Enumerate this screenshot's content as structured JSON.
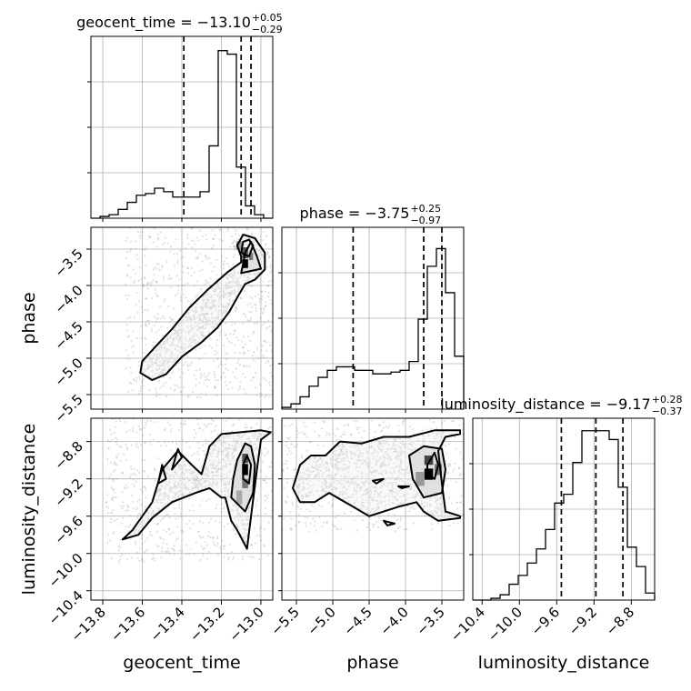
{
  "chart_data": {
    "type": "corner",
    "parameters": [
      {
        "key": "geocent_time",
        "label": "geocent_time",
        "title": "geocent_time = −13.10",
        "median_text": "−13.10",
        "err_plus": "+0.05",
        "err_minus": "−0.29",
        "range": [
          -13.86,
          -12.94
        ],
        "ticks": [
          -13.8,
          -13.6,
          -13.4,
          -13.2,
          -13.0
        ],
        "tick_labels": [
          "−13.8",
          "−13.6",
          "−13.4",
          "−13.2",
          "−13.0"
        ],
        "quantiles": [
          -13.39,
          -13.1,
          -13.05
        ],
        "hist_edges_start": -13.86,
        "hist_bin_width": 0.046,
        "hist_counts": [
          0,
          0.01,
          0.02,
          0.05,
          0.09,
          0.13,
          0.14,
          0.17,
          0.15,
          0.12,
          0.12,
          0.12,
          0.15,
          0.41,
          0.95,
          0.93,
          0.29,
          0.07,
          0.02,
          0
        ]
      },
      {
        "key": "phase",
        "label": "phase",
        "title": "phase = −3.75",
        "median_text": "−3.75",
        "err_plus": "+0.25",
        "err_minus": "−0.97",
        "range": [
          -5.7,
          -3.2
        ],
        "ticks": [
          -5.5,
          -5.0,
          -4.5,
          -4.0,
          -3.5
        ],
        "tick_labels": [
          "−5.5",
          "−5.0",
          "−4.5",
          "−4.0",
          "−3.5"
        ],
        "quantiles": [
          -4.72,
          -3.75,
          -3.5
        ],
        "hist_edges_start": -5.7,
        "hist_bin_width": 0.125,
        "hist_counts": [
          0.01,
          0.03,
          0.07,
          0.13,
          0.18,
          0.22,
          0.24,
          0.24,
          0.22,
          0.22,
          0.2,
          0.2,
          0.21,
          0.22,
          0.27,
          0.51,
          0.81,
          0.91,
          0.66,
          0.3
        ]
      },
      {
        "key": "luminosity_distance",
        "label": "luminosity_distance",
        "title": "luminosity_distance = −9.17",
        "median_text": "−9.17",
        "err_plus": "+0.28",
        "err_minus": "−0.37",
        "range": [
          -10.5,
          -8.55
        ],
        "ticks": [
          -10.4,
          -10.0,
          -9.6,
          -9.2,
          -8.8
        ],
        "tick_labels": [
          "−10.4",
          "−10.0",
          "−9.6",
          "−9.2",
          "−8.8"
        ],
        "quantiles": [
          -9.55,
          -9.18,
          -8.89
        ],
        "hist_edges_start": -10.5,
        "hist_bin_width": 0.0975,
        "hist_counts": [
          0,
          0,
          0.01,
          0.03,
          0.09,
          0.14,
          0.21,
          0.29,
          0.4,
          0.55,
          0.6,
          0.78,
          0.96,
          0.96,
          0.96,
          0.91,
          0.64,
          0.3,
          0.19,
          0.04
        ]
      }
    ],
    "pairs": [
      {
        "x": "geocent_time",
        "y": "phase",
        "contours": [
          [
            [
              -13.61,
              -5.2
            ],
            [
              -13.55,
              -5.3
            ],
            [
              -13.48,
              -5.22
            ],
            [
              -13.4,
              -4.98
            ],
            [
              -13.3,
              -4.78
            ],
            [
              -13.22,
              -4.58
            ],
            [
              -13.16,
              -4.36
            ],
            [
              -13.11,
              -4.12
            ],
            [
              -13.08,
              -3.98
            ],
            [
              -13.03,
              -3.92
            ],
            [
              -12.98,
              -3.78
            ],
            [
              -12.98,
              -3.55
            ],
            [
              -13.03,
              -3.35
            ],
            [
              -13.09,
              -3.3
            ],
            [
              -13.12,
              -3.45
            ],
            [
              -13.1,
              -3.6
            ],
            [
              -13.1,
              -3.68
            ],
            [
              -13.17,
              -3.82
            ],
            [
              -13.27,
              -4.06
            ],
            [
              -13.36,
              -4.3
            ],
            [
              -13.45,
              -4.6
            ],
            [
              -13.54,
              -4.86
            ],
            [
              -13.6,
              -5.04
            ],
            [
              -13.61,
              -5.2
            ]
          ],
          [
            [
              -13.1,
              -3.83
            ],
            [
              -13.0,
              -3.77
            ],
            [
              -13.02,
              -3.6
            ],
            [
              -13.05,
              -3.4
            ],
            [
              -13.08,
              -3.55
            ],
            [
              -13.09,
              -3.7
            ],
            [
              -13.1,
              -3.83
            ]
          ],
          [
            [
              -13.1,
              -3.55
            ],
            [
              -13.06,
              -3.6
            ],
            [
              -13.04,
              -3.45
            ],
            [
              -13.06,
              -3.37
            ],
            [
              -13.09,
              -3.4
            ],
            [
              -13.1,
              -3.55
            ]
          ]
        ],
        "pixel_blocks": [
          [
            -13.08,
            -3.7,
            0.03,
            0.12,
            "#000000"
          ],
          [
            -13.08,
            -3.55,
            0.03,
            0.15,
            "#555555"
          ],
          [
            -13.05,
            -3.6,
            0.02,
            0.1,
            "#777777"
          ],
          [
            -13.11,
            -3.45,
            0.03,
            0.12,
            "#999999"
          ]
        ]
      },
      {
        "x": "geocent_time",
        "y": "luminosity_distance",
        "contours": [
          [
            [
              -13.7,
              -9.85
            ],
            [
              -13.65,
              -9.75
            ],
            [
              -13.55,
              -9.45
            ],
            [
              -13.5,
              -9.1
            ],
            [
              -13.42,
              -8.9
            ],
            [
              -13.35,
              -9.05
            ],
            [
              -13.3,
              -9.15
            ],
            [
              -13.26,
              -8.85
            ],
            [
              -13.2,
              -8.72
            ],
            [
              -13.0,
              -8.68
            ],
            [
              -12.95,
              -8.7
            ],
            [
              -13.0,
              -8.78
            ],
            [
              -13.02,
              -9.1
            ],
            [
              -13.05,
              -9.6
            ],
            [
              -13.07,
              -9.95
            ],
            [
              -13.12,
              -9.75
            ],
            [
              -13.15,
              -9.65
            ],
            [
              -13.18,
              -9.4
            ],
            [
              -13.2,
              -9.4
            ],
            [
              -13.26,
              -9.3
            ],
            [
              -13.33,
              -9.35
            ],
            [
              -13.45,
              -9.45
            ],
            [
              -13.55,
              -9.62
            ],
            [
              -13.62,
              -9.8
            ],
            [
              -13.7,
              -9.85
            ]
          ],
          [
            [
              -13.15,
              -9.4
            ],
            [
              -13.08,
              -9.55
            ],
            [
              -13.04,
              -9.35
            ],
            [
              -13.03,
              -9.05
            ],
            [
              -13.05,
              -8.85
            ],
            [
              -13.08,
              -8.82
            ],
            [
              -13.12,
              -9.0
            ],
            [
              -13.14,
              -9.2
            ],
            [
              -13.15,
              -9.4
            ]
          ],
          [
            [
              -13.09,
              -9.2
            ],
            [
              -13.06,
              -9.25
            ],
            [
              -13.05,
              -9.05
            ],
            [
              -13.07,
              -8.95
            ],
            [
              -13.09,
              -9.05
            ],
            [
              -13.09,
              -9.2
            ]
          ],
          [
            [
              -13.45,
              -9.1
            ],
            [
              -13.42,
              -8.88
            ],
            [
              -13.4,
              -8.97
            ],
            [
              -13.45,
              -9.1
            ]
          ],
          [
            [
              -13.52,
              -9.25
            ],
            [
              -13.5,
              -9.05
            ],
            [
              -13.48,
              -9.2
            ],
            [
              -13.52,
              -9.25
            ]
          ]
        ],
        "pixel_blocks": [
          [
            -13.08,
            -9.1,
            0.03,
            0.12,
            "#000000"
          ],
          [
            -13.08,
            -8.98,
            0.03,
            0.1,
            "#555555"
          ],
          [
            -13.08,
            -9.25,
            0.03,
            0.1,
            "#777777"
          ],
          [
            -13.11,
            -9.4,
            0.03,
            0.15,
            "#aaaaaa"
          ]
        ]
      },
      {
        "x": "phase",
        "y": "luminosity_distance",
        "contours": [
          [
            [
              -5.55,
              -9.3
            ],
            [
              -5.45,
              -9.05
            ],
            [
              -5.3,
              -8.95
            ],
            [
              -5.1,
              -8.95
            ],
            [
              -4.9,
              -8.8
            ],
            [
              -4.6,
              -8.82
            ],
            [
              -4.3,
              -8.75
            ],
            [
              -3.95,
              -8.75
            ],
            [
              -3.6,
              -8.68
            ],
            [
              -3.25,
              -8.68
            ],
            [
              -3.25,
              -8.72
            ],
            [
              -3.45,
              -8.75
            ],
            [
              -3.55,
              -8.9
            ],
            [
              -3.5,
              -9.25
            ],
            [
              -3.45,
              -9.55
            ],
            [
              -3.25,
              -9.6
            ],
            [
              -3.25,
              -9.62
            ],
            [
              -3.55,
              -9.65
            ],
            [
              -3.75,
              -9.55
            ],
            [
              -3.85,
              -9.45
            ],
            [
              -4.1,
              -9.5
            ],
            [
              -4.3,
              -9.55
            ],
            [
              -4.5,
              -9.6
            ],
            [
              -4.72,
              -9.5
            ],
            [
              -5.05,
              -9.35
            ],
            [
              -5.25,
              -9.45
            ],
            [
              -5.45,
              -9.45
            ],
            [
              -5.55,
              -9.3
            ]
          ],
          [
            [
              -3.95,
              -8.95
            ],
            [
              -3.75,
              -8.85
            ],
            [
              -3.5,
              -8.88
            ],
            [
              -3.45,
              -9.1
            ],
            [
              -3.5,
              -9.35
            ],
            [
              -3.75,
              -9.4
            ],
            [
              -3.9,
              -9.2
            ],
            [
              -3.95,
              -8.95
            ]
          ],
          [
            [
              -3.7,
              -9.05
            ],
            [
              -3.6,
              -8.92
            ],
            [
              -3.55,
              -9.05
            ],
            [
              -3.6,
              -9.2
            ],
            [
              -3.7,
              -9.15
            ],
            [
              -3.7,
              -9.05
            ]
          ],
          [
            [
              -4.4,
              -9.25
            ],
            [
              -4.3,
              -9.2
            ],
            [
              -4.45,
              -9.22
            ],
            [
              -4.4,
              -9.25
            ]
          ],
          [
            [
              -4.05,
              -9.3
            ],
            [
              -3.95,
              -9.28
            ],
            [
              -4.1,
              -9.28
            ],
            [
              -4.05,
              -9.3
            ]
          ],
          [
            [
              -4.25,
              -9.7
            ],
            [
              -4.15,
              -9.68
            ],
            [
              -4.3,
              -9.65
            ],
            [
              -4.25,
              -9.7
            ]
          ]
        ],
        "pixel_blocks": [
          [
            -3.68,
            -9.15,
            0.12,
            0.12,
            "#000000"
          ],
          [
            -3.68,
            -9.0,
            0.12,
            0.1,
            "#444444"
          ],
          [
            -3.55,
            -9.1,
            0.1,
            0.12,
            "#777777"
          ],
          [
            -3.8,
            -9.2,
            0.12,
            0.15,
            "#999999"
          ]
        ]
      }
    ]
  }
}
